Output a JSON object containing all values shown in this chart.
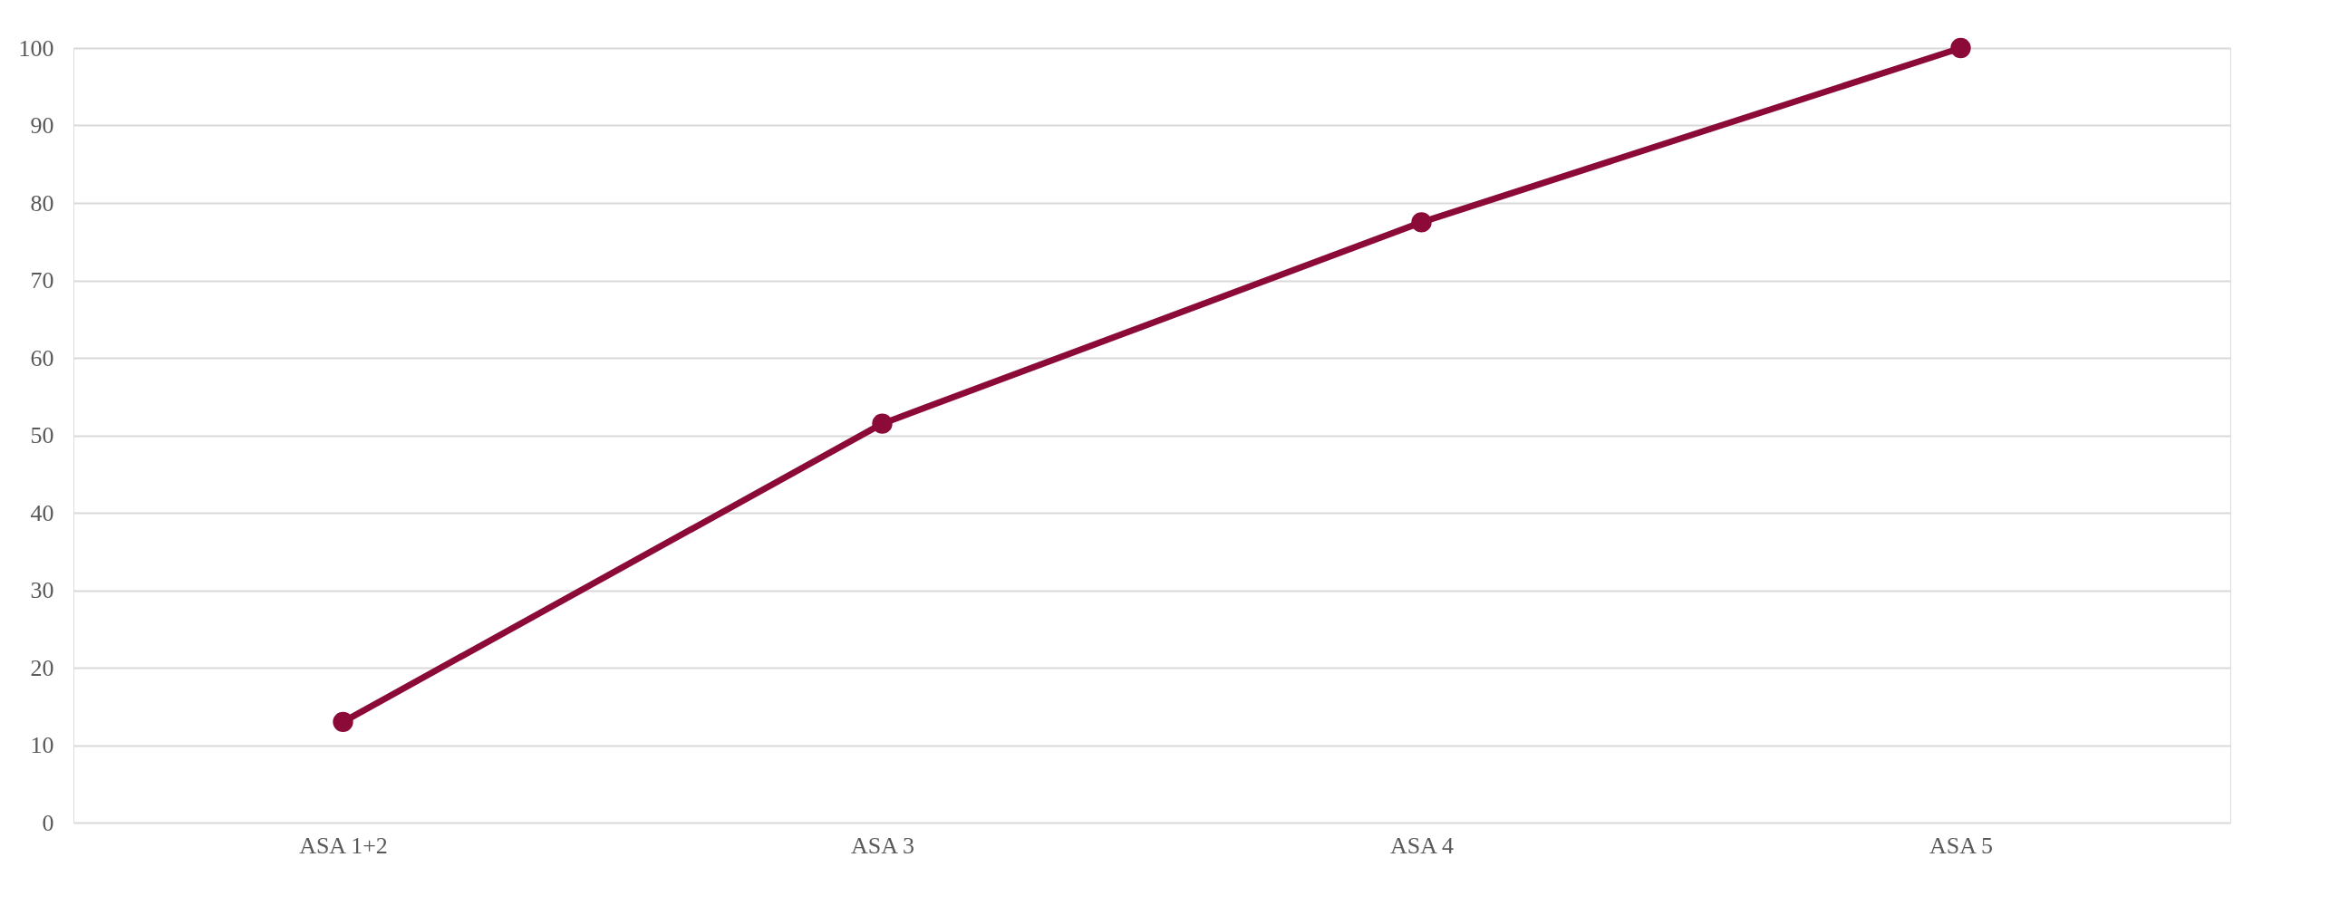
{
  "chart_data": {
    "type": "line",
    "categories": [
      "ASA 1+2",
      "ASA 3",
      "ASA 4",
      "ASA 5"
    ],
    "series": [
      {
        "color": "#8b0a38",
        "values": [
          13,
          51.5,
          77.5,
          100
        ]
      }
    ],
    "ylim": [
      0,
      100
    ],
    "yticks": [
      0,
      10,
      20,
      30,
      40,
      50,
      60,
      70,
      80,
      90,
      100
    ],
    "grid": "y",
    "marker": "circle",
    "line_style": "solid"
  }
}
